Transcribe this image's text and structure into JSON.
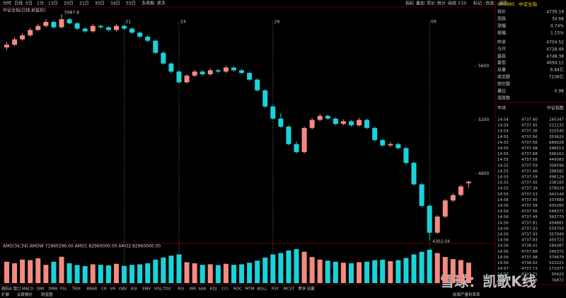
{
  "toolbar": {
    "tabs": [
      "分时",
      "日线",
      "5日",
      "1分",
      "13日",
      "20日",
      "21日",
      "30日",
      "34日",
      "55日",
      "多周期",
      "更多"
    ],
    "tools": [
      "指标",
      "叠加",
      "竞价",
      "统计",
      "画线",
      "F10",
      "标记",
      "-自选",
      "返回"
    ]
  },
  "chart_data": {
    "type": "candlestick",
    "title": "中证全指(日线,前复权)",
    "categories": [
      null,
      null,
      null,
      null,
      null,
      null,
      null,
      null,
      null,
      null,
      null,
      null,
      null,
      null,
      null,
      "21",
      null,
      null,
      null,
      null,
      null,
      null,
      "24",
      null,
      null,
      null,
      null,
      null,
      null,
      null,
      null,
      null,
      null,
      null,
      "26",
      null,
      null,
      null,
      null,
      null,
      null,
      null,
      null,
      null,
      null,
      null,
      null,
      null,
      null,
      null,
      null,
      null,
      null,
      null,
      "09",
      null,
      null,
      null,
      null,
      null
    ],
    "open": [
      5740,
      5760,
      5800,
      5830,
      5870,
      5900,
      5930,
      5890,
      5950,
      5920,
      5880,
      5860,
      5900,
      5890,
      5870,
      5900,
      5880,
      5850,
      5820,
      5790,
      5700,
      5620,
      5560,
      5480,
      5530,
      5560,
      5540,
      5570,
      5560,
      5590,
      5570,
      5550,
      5500,
      5420,
      5300,
      5210,
      5150,
      5020,
      4960,
      5140,
      5200,
      5230,
      5210,
      5170,
      5190,
      5160,
      5200,
      5140,
      5050,
      5010,
      5020,
      4990,
      4880,
      4720,
      4560,
      4360,
      4480,
      4600,
      4640,
      4728.49
    ],
    "high": [
      5780,
      5815,
      5845,
      5885,
      5915,
      5950,
      5940,
      5987.8,
      5960,
      5930,
      5890,
      5915,
      5910,
      5900,
      5915,
      5910,
      5890,
      5860,
      5830,
      5800,
      5710,
      5630,
      5570,
      5540,
      5575,
      5570,
      5585,
      5580,
      5605,
      5600,
      5580,
      5560,
      5510,
      5430,
      5310,
      5250,
      5160,
      5040,
      5150,
      5215,
      5245,
      5240,
      5220,
      5205,
      5200,
      5215,
      5210,
      5150,
      5060,
      5035,
      5030,
      5000,
      4890,
      4730,
      4570,
      4490,
      4610,
      4655,
      4715,
      4748.38
    ],
    "low": [
      5720,
      5750,
      5790,
      5820,
      5860,
      5890,
      5880,
      5880,
      5910,
      5870,
      5850,
      5850,
      5880,
      5860,
      5860,
      5870,
      5840,
      5810,
      5780,
      5690,
      5610,
      5550,
      5470,
      5470,
      5520,
      5530,
      5530,
      5550,
      5550,
      5560,
      5540,
      5490,
      5410,
      5290,
      5200,
      5140,
      5010,
      4950,
      4950,
      5130,
      5190,
      5200,
      5160,
      5160,
      5150,
      5150,
      5130,
      5040,
      5000,
      5000,
      4980,
      4870,
      4710,
      4550,
      4302.04,
      4350,
      4470,
      4590,
      4630,
      4694.11
    ],
    "close": [
      5760,
      5800,
      5830,
      5870,
      5900,
      5930,
      5890,
      5950,
      5920,
      5880,
      5860,
      5900,
      5890,
      5870,
      5900,
      5880,
      5850,
      5820,
      5790,
      5700,
      5620,
      5560,
      5480,
      5530,
      5560,
      5540,
      5570,
      5560,
      5590,
      5570,
      5550,
      5500,
      5420,
      5300,
      5210,
      5150,
      5020,
      4960,
      5140,
      5200,
      5230,
      5210,
      5170,
      5190,
      5160,
      5200,
      5140,
      5050,
      5010,
      5020,
      4990,
      4880,
      4720,
      4560,
      4360,
      4480,
      4600,
      4640,
      4704.52,
      4739.19
    ],
    "up_color": "#f28b82",
    "down_color": "#19d3da",
    "ylim": [
      4290,
      6030
    ],
    "yticks": [
      4800,
      5200,
      5600
    ],
    "volume_title": "AMO(34,34) AMOW 71860296.00 AMO1 82960000.00 AMO2 82960000.00",
    "volume": [
      820,
      760,
      900,
      880,
      950,
      700,
      820,
      1010,
      760,
      690,
      650,
      720,
      700,
      680,
      740,
      660,
      700,
      720,
      760,
      900,
      980,
      1050,
      1100,
      800,
      760,
      700,
      720,
      690,
      740,
      700,
      720,
      780,
      860,
      980,
      1100,
      1150,
      1250,
      1300,
      1200,
      1000,
      900,
      860,
      820,
      780,
      760,
      800,
      820,
      880,
      900,
      840,
      880,
      960,
      1100,
      1200,
      1280,
      1150,
      1000,
      920,
      880,
      780
    ]
  },
  "quote": {
    "code": "000985",
    "name": "中证全指",
    "fields": [
      {
        "label": "现价",
        "value": "4739.19",
        "color": "#ff4d4d"
      },
      {
        "label": "涨跌",
        "value": "34.68",
        "color": "#ff4d4d"
      },
      {
        "label": "涨幅",
        "value": "0.74%",
        "color": "#ff4d4d"
      },
      {
        "label": "振幅",
        "value": "1.15%",
        "color": "#ff4d4d"
      },
      {
        "label": "昨收",
        "value": "4704.52",
        "color": "#e0e0e0"
      },
      {
        "label": "今开",
        "value": "4728.49",
        "color": "#ff4d4d"
      },
      {
        "label": "最高",
        "value": "4748.38",
        "color": "#ff4d4d"
      },
      {
        "label": "最低",
        "value": "4694.11",
        "color": "#33cc33"
      },
      {
        "label": "总量",
        "value": "6.84亿",
        "color": "#ffd700"
      },
      {
        "label": "成交额",
        "value": "7106亿",
        "color": "#ffd700"
      },
      {
        "label": "抛空额"
      },
      {
        "label": "量比",
        "value": "0.98",
        "color": "#33cc33"
      },
      {
        "label": "涨跌数"
      }
    ]
  },
  "trades": {
    "headers": [
      "市场",
      "中证指数"
    ],
    "rows": [
      [
        "14:54",
        "4737.40",
        "245347"
      ],
      [
        "14:54",
        "4737.45",
        "522133"
      ],
      [
        "14:54",
        "4737.36",
        "320540"
      ],
      [
        "14:55",
        "4737.56",
        "353620"
      ],
      [
        "14:55",
        "4737.56",
        "689028"
      ],
      [
        "14:55",
        "4737.48",
        "346513"
      ],
      [
        "14:55",
        "4737.68",
        "396161"
      ],
      [
        "14:55",
        "4737.58",
        "449083"
      ],
      [
        "14:55",
        "4737.59",
        "308598"
      ],
      [
        "14:55",
        "4737.46",
        "398582"
      ],
      [
        "14:55",
        "4737.59",
        "498124"
      ],
      [
        "14:55",
        "4737.45",
        "338185"
      ],
      [
        "14:55",
        "4737.39",
        "378029"
      ],
      [
        "14:55",
        "4737.53",
        "442144"
      ],
      [
        "14:56",
        "4737.45",
        "337680"
      ],
      [
        "14:56",
        "4737.58",
        "435280"
      ],
      [
        "14:56",
        "4737.56",
        "548371"
      ],
      [
        "14:56",
        "4737.49",
        "383770"
      ],
      [
        "14:56",
        "4737.81",
        "494681"
      ],
      [
        "14:56",
        "4737.93",
        "559759"
      ],
      [
        "14:56",
        "4737.93",
        "357949"
      ],
      [
        "14:56",
        "4737.83",
        "455723"
      ],
      [
        "14:56",
        "4738.01",
        "584387"
      ],
      [
        "14:56",
        "4737.88",
        "345372"
      ],
      [
        "14:56",
        "4737.98",
        "379679"
      ],
      [
        "14:56",
        "4738.02",
        "523221"
      ],
      [
        "14:57",
        "4737.73",
        "171077"
      ],
      [
        "14:57",
        "4737.71",
        "55423"
      ],
      [
        "14:57",
        "4739.19",
        "76872"
      ]
    ]
  },
  "indicator_tabs": [
    "指标A",
    "窗口",
    "MACD",
    "DMI",
    "DMA",
    "FSL",
    "TRIX",
    "BRAR",
    "CR",
    "VR",
    "OBV",
    "ASI",
    "EMV",
    "VOL-TDX",
    "RSI",
    "WR",
    "SAR",
    "KDJ",
    "CCI",
    "ROC",
    "MTM",
    "BOLL",
    "PSY",
    "MCST",
    "更多",
    "设置"
  ],
  "footer": {
    "left": [
      "扩展",
      "关联报价",
      "财富圈"
    ],
    "right": "前周产量利率率"
  },
  "watermark": "雪球：凯歌K线"
}
